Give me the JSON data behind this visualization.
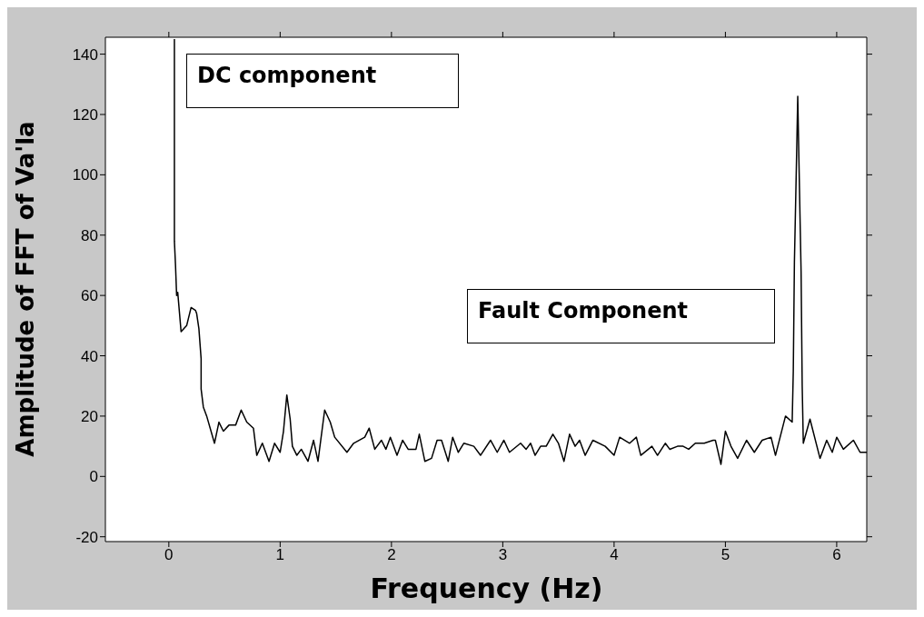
{
  "chart_data": {
    "type": "line",
    "xlabel": "Frequency (Hz)",
    "ylabel": "Amplitude of FFT of Va'la",
    "annotations": [
      "DC component",
      "Fault Component"
    ],
    "x": [
      0.05,
      0.05,
      0.06,
      0.07,
      0.08,
      0.11,
      0.16,
      0.2,
      0.24,
      0.25,
      0.27,
      0.29,
      0.29,
      0.31,
      0.34,
      0.41,
      0.45,
      0.49,
      0.54,
      0.6,
      0.65,
      0.7,
      0.76,
      0.79,
      0.84,
      0.9,
      0.95,
      1.0,
      1.03,
      1.06,
      1.09,
      1.11,
      1.15,
      1.19,
      1.25,
      1.3,
      1.34,
      1.4,
      1.45,
      1.49,
      1.6,
      1.66,
      1.76,
      1.8,
      1.85,
      1.91,
      1.95,
      1.99,
      2.05,
      2.1,
      2.15,
      2.22,
      2.25,
      2.3,
      2.36,
      2.41,
      2.45,
      2.51,
      2.55,
      2.6,
      2.65,
      2.74,
      2.8,
      2.89,
      2.95,
      3.01,
      3.06,
      3.16,
      3.21,
      3.25,
      3.29,
      3.34,
      3.39,
      3.45,
      3.5,
      3.55,
      3.6,
      3.65,
      3.69,
      3.74,
      3.81,
      3.92,
      4.0,
      4.05,
      4.14,
      4.2,
      4.24,
      4.34,
      4.39,
      4.46,
      4.5,
      4.57,
      4.62,
      4.67,
      4.73,
      4.81,
      4.89,
      4.91,
      4.96,
      5.0,
      5.05,
      5.11,
      5.19,
      5.26,
      5.33,
      5.41,
      5.45,
      5.54,
      5.6,
      5.61,
      5.62,
      5.64,
      5.65,
      5.66,
      5.68,
      5.69,
      5.7,
      5.76,
      5.85,
      5.91,
      5.96,
      6.0,
      6.06,
      6.15,
      6.21,
      6.27
    ],
    "series": [
      {
        "color": "#000000",
        "values": [
          145,
          78,
          70,
          60,
          61,
          48,
          50,
          56,
          55,
          54,
          49,
          39,
          29,
          23,
          20,
          11,
          18,
          15,
          17,
          17,
          22,
          18,
          16,
          7,
          11,
          5,
          11,
          8,
          15,
          27,
          19,
          10,
          7,
          9,
          5,
          12,
          5,
          22,
          18,
          13,
          8,
          11,
          13,
          16,
          9,
          12,
          9,
          13,
          7,
          12,
          9,
          9,
          14,
          5,
          6,
          12,
          12,
          5,
          13,
          8,
          11,
          10,
          7,
          12,
          8,
          12,
          8,
          11,
          9,
          11,
          7,
          10,
          10,
          14,
          11,
          5,
          14,
          10,
          12,
          7,
          12,
          10,
          7,
          13,
          11,
          13,
          7,
          10,
          7,
          11,
          9,
          10,
          10,
          9,
          11,
          11,
          12,
          12,
          4,
          15,
          10,
          6,
          12,
          8,
          12,
          13,
          7,
          20,
          18,
          35,
          71,
          107,
          126,
          106,
          68,
          30,
          11,
          19,
          6,
          12,
          8,
          13,
          9,
          12,
          8,
          8
        ]
      }
    ],
    "xlim": [
      -0.57,
      6.27
    ],
    "ylim": [
      -21.6,
      145.6
    ],
    "xticks": [
      0,
      1,
      2,
      3,
      4,
      5,
      6
    ],
    "yticks": [
      -20,
      0,
      20,
      40,
      60,
      80,
      100,
      120,
      140
    ],
    "grid": false,
    "legend": false,
    "marker": "none",
    "line_style": "solid"
  }
}
